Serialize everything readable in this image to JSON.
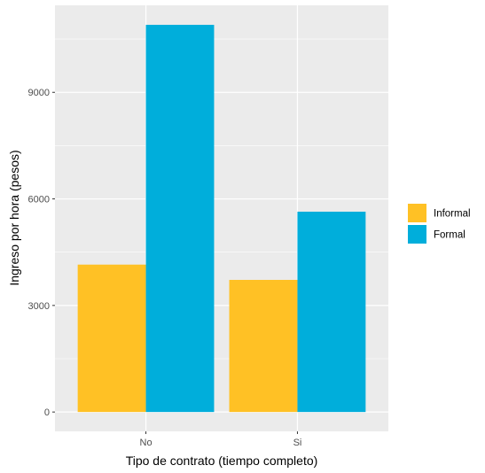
{
  "chart_data": {
    "type": "bar",
    "xlabel": "Tipo de contrato (tiempo completo)",
    "ylabel": "Ingreso por hora (pesos)",
    "categories": [
      "No",
      "Si"
    ],
    "series": [
      {
        "name": "Informal",
        "values": [
          4150,
          3720
        ],
        "color": "#FFC125"
      },
      {
        "name": "Formal",
        "values": [
          10900,
          5640
        ],
        "color": "#00AEDB"
      }
    ],
    "yticks": [
      0,
      3000,
      6000,
      9000
    ],
    "ytick_labels": [
      "0",
      "3000",
      "6000",
      "9000"
    ],
    "ylim": [
      -545,
      11450
    ],
    "grid": true,
    "legend_position": "right",
    "panel_background": "#EBEBEB"
  }
}
